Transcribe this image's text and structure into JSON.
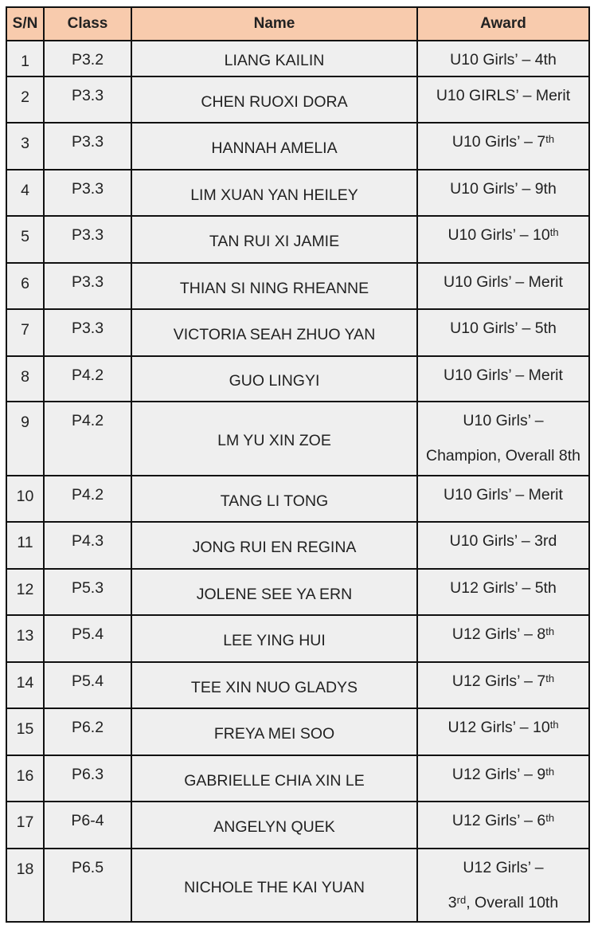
{
  "headers": {
    "sn": "S/N",
    "class": "Class",
    "name": "Name",
    "award": "Award"
  },
  "rows": [
    {
      "sn": "1",
      "cls": "P3.2",
      "name": "LIANG KAILIN",
      "award": "U10 Girls’ – 4th",
      "sup": "",
      "tail": ""
    },
    {
      "sn": "2",
      "cls": "P3.3",
      "name": "CHEN RUOXI DORA",
      "award": "U10 GIRLS’ – Merit",
      "sup": "",
      "tail": ""
    },
    {
      "sn": "3",
      "cls": "P3.3",
      "name": "HANNAH AMELIA",
      "award": "U10 Girls’ – 7",
      "sup": "th",
      "tail": ""
    },
    {
      "sn": "4",
      "cls": "P3.3",
      "name": "LIM XUAN YAN HEILEY",
      "award": "U10 Girls’ – 9th",
      "sup": "",
      "tail": ""
    },
    {
      "sn": "5",
      "cls": "P3.3",
      "name": "TAN RUI XI JAMIE",
      "award": "U10 Girls’ – 10",
      "sup": "th",
      "tail": ""
    },
    {
      "sn": "6",
      "cls": "P3.3",
      "name": "THIAN SI NING RHEANNE",
      "award": "U10 Girls’ – Merit",
      "sup": "",
      "tail": ""
    },
    {
      "sn": "7",
      "cls": "P3.3",
      "name": "VICTORIA SEAH ZHUO YAN",
      "award": "U10 Girls’ – 5th",
      "sup": "",
      "tail": ""
    },
    {
      "sn": "8",
      "cls": "P4.2",
      "name": "GUO LINGYI",
      "award": "U10 Girls’ – Merit",
      "sup": "",
      "tail": ""
    },
    {
      "sn": "9",
      "cls": "P4.2",
      "name": "LM YU XIN ZOE",
      "award": "U10 Girls’ –",
      "line2": "Champion, Overall 8th",
      "sup": "",
      "tail": ""
    },
    {
      "sn": "10",
      "cls": "P4.2",
      "name": "TANG LI TONG",
      "award": "U10 Girls’ – Merit",
      "sup": "",
      "tail": ""
    },
    {
      "sn": "11",
      "cls": "P4.3",
      "name": "JONG RUI EN REGINA",
      "award": "U10 Girls’ – 3rd",
      "sup": "",
      "tail": ""
    },
    {
      "sn": "12",
      "cls": "P5.3",
      "name": "JOLENE SEE YA ERN",
      "award": "U12 Girls’ – 5th",
      "sup": "",
      "tail": ""
    },
    {
      "sn": "13",
      "cls": "P5.4",
      "name": "LEE YING HUI",
      "award": "U12 Girls’ – 8",
      "sup": "th",
      "tail": ""
    },
    {
      "sn": "14",
      "cls": "P5.4",
      "name": "TEE XIN NUO GLADYS",
      "award": "U12 Girls’ – 7",
      "sup": "th",
      "tail": ""
    },
    {
      "sn": "15",
      "cls": "P6.2",
      "name": "FREYA MEI SOO",
      "award": "U12 Girls’ – 10",
      "sup": "th",
      "tail": ""
    },
    {
      "sn": "16",
      "cls": "P6.3",
      "name": "GABRIELLE CHIA XIN LE",
      "award": "U12 Girls’ – 9",
      "sup": "th",
      "tail": ""
    },
    {
      "sn": "17",
      "cls": "P6-4",
      "name": "ANGELYN QUEK",
      "award": "U12 Girls’ – 6",
      "sup": "th",
      "tail": ""
    },
    {
      "sn": "18",
      "cls": "P6.5",
      "name": "NICHOLE THE KAI YUAN",
      "award": "U12 Girls’ –",
      "line2": "3",
      "sup2": "rd",
      "tail2": ", Overall 10th",
      "sup": "",
      "tail": ""
    }
  ]
}
